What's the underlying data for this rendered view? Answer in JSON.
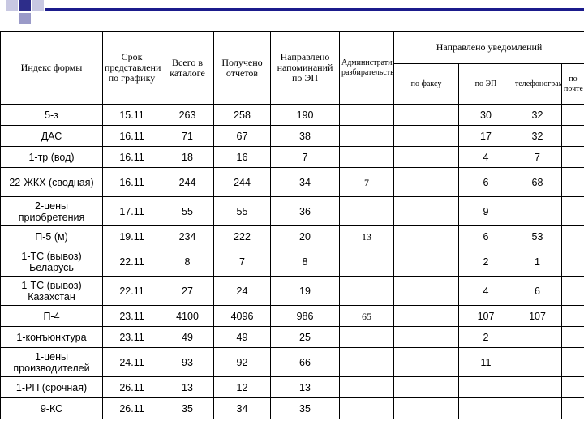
{
  "colors": {
    "accent": "#1b1b8c",
    "square_dark": "#2d2d8a",
    "square_mid": "#9a9ac8",
    "square_light": "#c8c8e2"
  },
  "table": {
    "headers": {
      "index_form": "Индекс формы",
      "deadline": "Срок представления по графику",
      "catalog_total": "Всего в каталоге",
      "received": "Получено отчетов",
      "sent_reminders": "Направлено напоминаний по ЭП",
      "admin_proceedings": "Административное разбирательство",
      "notifications_group": "Направлено уведомлений",
      "by_fax": "по факсу",
      "by_ep": "по ЭП",
      "by_telegram": "телефонограммой",
      "by_mail": "по почте"
    },
    "rows": [
      {
        "form": "5-з",
        "deadline": "15.11",
        "total": "263",
        "received": "258",
        "reminders": "190",
        "admin": "",
        "fax": "",
        "ep": "30",
        "tel": "32",
        "mail": ""
      },
      {
        "form": "ДАС",
        "deadline": "16.11",
        "total": "71",
        "received": "67",
        "reminders": "38",
        "admin": "",
        "fax": "",
        "ep": "17",
        "tel": "32",
        "mail": ""
      },
      {
        "form": "1-тр (вод)",
        "deadline": "16.11",
        "total": "18",
        "received": "16",
        "reminders": "7",
        "admin": "",
        "fax": "",
        "ep": "4",
        "tel": "7",
        "mail": ""
      },
      {
        "form": "22-ЖКХ (сводная)",
        "deadline": "16.11",
        "total": "244",
        "received": "244",
        "reminders": "34",
        "admin": "7",
        "fax": "",
        "ep": "6",
        "tel": "68",
        "mail": ""
      },
      {
        "form": "2-цены приобретения",
        "deadline": "17.11",
        "total": "55",
        "received": "55",
        "reminders": "36",
        "admin": "",
        "fax": "",
        "ep": "9",
        "tel": "",
        "mail": ""
      },
      {
        "form": "П-5 (м)",
        "deadline": "19.11",
        "total": "234",
        "received": "222",
        "reminders": "20",
        "admin": "13",
        "fax": "",
        "ep": "6",
        "tel": "53",
        "mail": ""
      },
      {
        "form": "1-ТС (вывоз) Беларусь",
        "deadline": "22.11",
        "total": "8",
        "received": "7",
        "reminders": "8",
        "admin": "",
        "fax": "",
        "ep": "2",
        "tel": "1",
        "mail": ""
      },
      {
        "form": "1-ТС (вывоз) Казахстан",
        "deadline": "22.11",
        "total": "27",
        "received": "24",
        "reminders": "19",
        "admin": "",
        "fax": "",
        "ep": "4",
        "tel": "6",
        "mail": ""
      },
      {
        "form": "П-4",
        "deadline": "23.11",
        "total": "4100",
        "received": "4096",
        "reminders": "986",
        "admin": "65",
        "fax": "",
        "ep": "107",
        "tel": "107",
        "mail": ""
      },
      {
        "form": "1-конъюнктура",
        "deadline": "23.11",
        "total": "49",
        "received": "49",
        "reminders": "25",
        "admin": "",
        "fax": "",
        "ep": "2",
        "tel": "",
        "mail": ""
      },
      {
        "form": "1-цены производителей",
        "deadline": "24.11",
        "total": "93",
        "received": "92",
        "reminders": "66",
        "admin": "",
        "fax": "",
        "ep": "11",
        "tel": "",
        "mail": ""
      },
      {
        "form": "1-РП (срочная)",
        "deadline": "26.11",
        "total": "13",
        "received": "12",
        "reminders": "13",
        "admin": "",
        "fax": "",
        "ep": "",
        "tel": "",
        "mail": ""
      },
      {
        "form": "9-КС",
        "deadline": "26.11",
        "total": "35",
        "received": "34",
        "reminders": "35",
        "admin": "",
        "fax": "",
        "ep": "",
        "tel": "",
        "mail": ""
      }
    ]
  }
}
